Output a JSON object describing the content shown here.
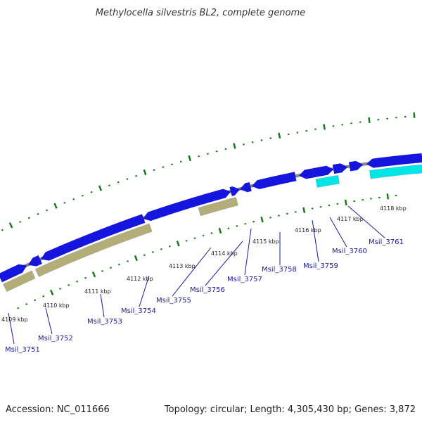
{
  "title": "Methylocella silvestris BL2, complete genome",
  "footer": {
    "accession": "Accession: NC_011666",
    "summary": "Topology: circular; Length: 4,305,430 bp; Genes: 3,872"
  },
  "colors": {
    "gene_blue": "#1515e0",
    "gene_cyan": "#00e5e5",
    "gene_olive": "#b3ad78",
    "backbone": "#8a8a8a",
    "tick_green": "#1a7a1a",
    "label_blue": "#1a1aa6"
  },
  "ticks": [
    "4109 kbp",
    "4110 kbp",
    "4111 kbp",
    "4112 kbp",
    "4113 kbp",
    "4114 kbp",
    "4115 kbp",
    "4116 kbp",
    "4117 kbp",
    "4118 kbp"
  ],
  "genes": [
    {
      "label": "Msil_3751"
    },
    {
      "label": "Msil_3752"
    },
    {
      "label": "Msil_3753"
    },
    {
      "label": "Msil_3754"
    },
    {
      "label": "Msil_3755"
    },
    {
      "label": "Msil_3756"
    },
    {
      "label": "Msil_3757"
    },
    {
      "label": "Msil_3758"
    },
    {
      "label": "Msil_3759"
    },
    {
      "label": "Msil_3760"
    },
    {
      "label": "Msil_3761"
    }
  ]
}
